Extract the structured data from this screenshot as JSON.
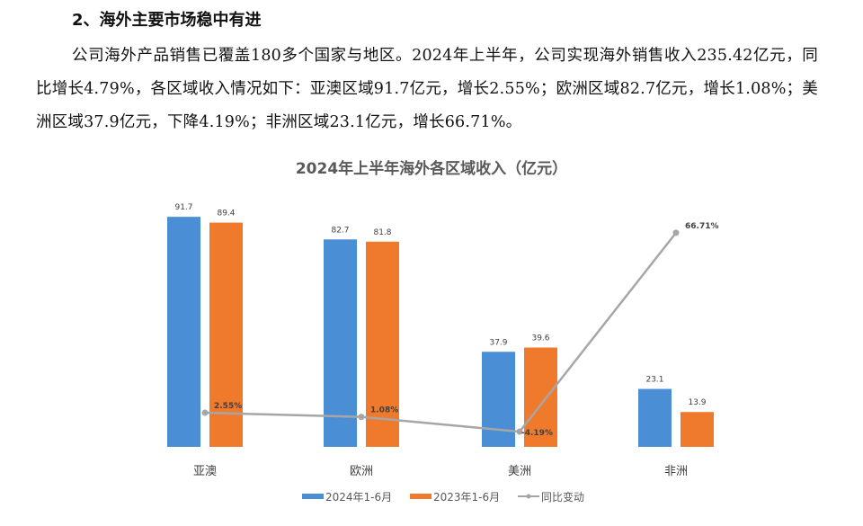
{
  "document": {
    "heading": "2、海外主要市场稳中有进",
    "paragraph": "公司海外产品销售已覆盖180多个国家与地区。2024年上半年，公司实现海外销售收入235.42亿元，同比增长4.79%，各区域收入情况如下：亚澳区域91.7亿元，增长2.55%；欧洲区域82.7亿元，增长1.08%；美洲区域37.9亿元，下降4.19%；非洲区域23.1亿元，增长66.71%。"
  },
  "chart_data": {
    "type": "bar",
    "title": "2024年上半年海外各区域收入（亿元）",
    "categories": [
      "亚澳",
      "欧洲",
      "美洲",
      "非洲"
    ],
    "series": [
      {
        "name": "2024年1-6月",
        "type": "bar",
        "color": "#4a8fd6",
        "values": [
          91.7,
          82.7,
          37.9,
          23.1
        ],
        "labels": [
          "91.7",
          "82.7",
          "37.9",
          "23.1"
        ]
      },
      {
        "name": "2023年1-6月",
        "type": "bar",
        "color": "#f07a2c",
        "values": [
          89.4,
          81.8,
          39.6,
          13.9
        ],
        "labels": [
          "89.4",
          "81.8",
          "39.6",
          "13.9"
        ]
      },
      {
        "name": "同比变动",
        "type": "line",
        "axis": "secondary",
        "color": "#a6a6a6",
        "values": [
          2.55,
          1.08,
          -4.19,
          66.71
        ],
        "labels": [
          "2.55%",
          "1.08%",
          "-4.19%",
          "66.71%"
        ]
      }
    ],
    "grid": false,
    "legend": "bottom"
  }
}
